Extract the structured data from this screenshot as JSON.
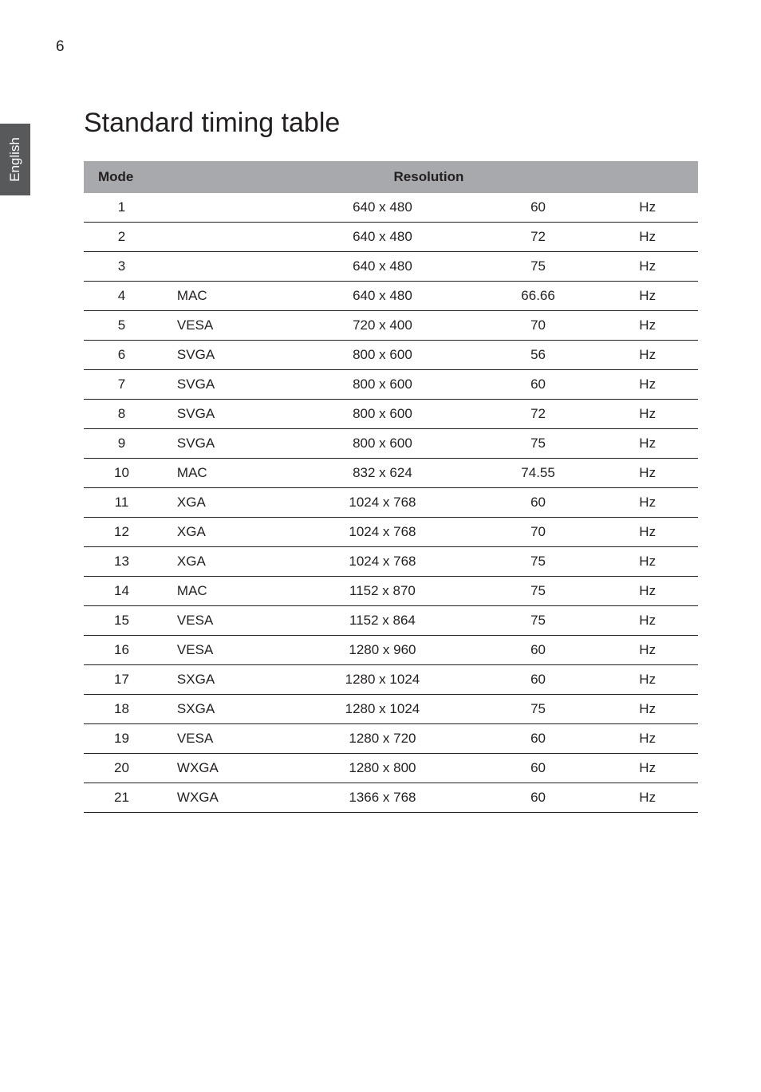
{
  "page_number": "6",
  "side_tab": "English",
  "title": "Standard timing table",
  "table": {
    "headers": {
      "mode": "Mode",
      "resolution": "Resolution"
    },
    "rows": [
      {
        "mode": "1",
        "standard": "",
        "resolution": "640 x 480",
        "rate": "60",
        "unit": "Hz"
      },
      {
        "mode": "2",
        "standard": "",
        "resolution": "640 x 480",
        "rate": "72",
        "unit": "Hz"
      },
      {
        "mode": "3",
        "standard": "",
        "resolution": "640 x 480",
        "rate": "75",
        "unit": "Hz"
      },
      {
        "mode": "4",
        "standard": "MAC",
        "resolution": "640 x 480",
        "rate": "66.66",
        "unit": "Hz"
      },
      {
        "mode": "5",
        "standard": "VESA",
        "resolution": "720 x 400",
        "rate": "70",
        "unit": "Hz"
      },
      {
        "mode": "6",
        "standard": "SVGA",
        "resolution": "800 x 600",
        "rate": "56",
        "unit": "Hz"
      },
      {
        "mode": "7",
        "standard": "SVGA",
        "resolution": "800 x 600",
        "rate": "60",
        "unit": "Hz"
      },
      {
        "mode": "8",
        "standard": "SVGA",
        "resolution": "800 x 600",
        "rate": "72",
        "unit": "Hz"
      },
      {
        "mode": "9",
        "standard": "SVGA",
        "resolution": "800 x 600",
        "rate": "75",
        "unit": "Hz"
      },
      {
        "mode": "10",
        "standard": "MAC",
        "resolution": "832 x 624",
        "rate": "74.55",
        "unit": "Hz"
      },
      {
        "mode": "11",
        "standard": "XGA",
        "resolution": "1024 x 768",
        "rate": "60",
        "unit": "Hz"
      },
      {
        "mode": "12",
        "standard": "XGA",
        "resolution": "1024 x 768",
        "rate": "70",
        "unit": "Hz"
      },
      {
        "mode": "13",
        "standard": "XGA",
        "resolution": "1024 x 768",
        "rate": "75",
        "unit": "Hz"
      },
      {
        "mode": "14",
        "standard": "MAC",
        "resolution": "1152 x 870",
        "rate": "75",
        "unit": "Hz"
      },
      {
        "mode": "15",
        "standard": "VESA",
        "resolution": "1152 x 864",
        "rate": "75",
        "unit": "Hz"
      },
      {
        "mode": "16",
        "standard": "VESA",
        "resolution": "1280 x 960",
        "rate": "60",
        "unit": "Hz"
      },
      {
        "mode": "17",
        "standard": "SXGA",
        "resolution": "1280 x 1024",
        "rate": "60",
        "unit": "Hz"
      },
      {
        "mode": "18",
        "standard": "SXGA",
        "resolution": "1280 x 1024",
        "rate": "75",
        "unit": "Hz"
      },
      {
        "mode": "19",
        "standard": "VESA",
        "resolution": "1280 x 720",
        "rate": "60",
        "unit": "Hz"
      },
      {
        "mode": "20",
        "standard": "WXGA",
        "resolution": "1280 x 800",
        "rate": "60",
        "unit": "Hz"
      },
      {
        "mode": "21",
        "standard": "WXGA",
        "resolution": "1366 x 768",
        "rate": "60",
        "unit": "Hz"
      }
    ]
  }
}
